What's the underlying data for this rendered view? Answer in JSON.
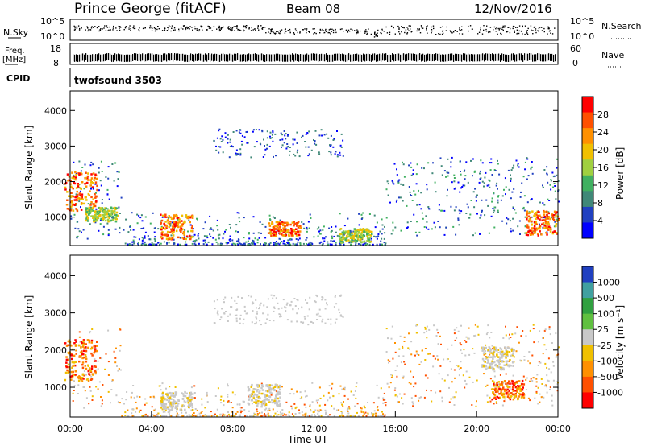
{
  "header": {
    "station": "Prince George (fitACF)",
    "beam": "Beam 08",
    "date": "12/Nov/2016"
  },
  "strips": {
    "nsky_label": "N.Sky",
    "nsky_ticks": [
      "10^5",
      "10^0"
    ],
    "nsky_right_ticks": [
      "10^5",
      "10^0"
    ],
    "nsearch_label": "N.Search",
    "freq_label": "Freq.",
    "freq_unit": "[MHz]",
    "freq_ticks": [
      "18",
      "8"
    ],
    "nave_ticks": [
      "60",
      "0"
    ],
    "nave_label": "Nave",
    "cpid_label": "CPID",
    "cpid_value": "twofsound 3503"
  },
  "chart_data": [
    {
      "type": "heatmap",
      "quantity": "Power",
      "ylabel": "Slant Range [km]",
      "xlabel": "",
      "ylim": [
        200,
        4550
      ],
      "yticks": [
        "1000",
        "2000",
        "3000",
        "4000"
      ],
      "colorbar_label": "Power [dB]",
      "colorbar_ticks": [
        "28",
        "24",
        "20",
        "16",
        "12",
        "8",
        "4"
      ],
      "colorbar_colors": [
        "#ff0000",
        "#ff5000",
        "#ff9000",
        "#f0c000",
        "#a0d040",
        "#40b060",
        "#408878",
        "#2040c0",
        "#0000ff"
      ],
      "data": [
        {
          "t": 0.5,
          "range": [
            1200,
            2300
          ],
          "level": "high"
        },
        {
          "t": 1.5,
          "range": [
            900,
            1300
          ],
          "level": "mid"
        },
        {
          "t": 5.2,
          "range": [
            400,
            1100
          ],
          "level": "high"
        },
        {
          "t": 10.5,
          "range": [
            500,
            900
          ],
          "level": "high"
        },
        {
          "t": 14.0,
          "range": [
            300,
            700
          ],
          "level": "mid"
        },
        {
          "t": 23.2,
          "range": [
            500,
            1200
          ],
          "level": "high"
        }
      ]
    },
    {
      "type": "heatmap",
      "quantity": "Velocity",
      "ylabel": "Slant Range [km]",
      "xlabel": "Time UT",
      "ylim": [
        200,
        4550
      ],
      "yticks": [
        "1000",
        "2000",
        "3000",
        "4000"
      ],
      "xticks": [
        "00:00",
        "04:00",
        "08:00",
        "12:00",
        "16:00",
        "20:00",
        "00:00"
      ],
      "xlim": [
        0,
        24
      ],
      "colorbar_label": "Velocity [m s⁻¹]",
      "colorbar_ticks": [
        "1000",
        "500",
        "100",
        "25",
        "-25",
        "-100",
        "-500",
        "-1000"
      ],
      "colorbar_colors": [
        "#2040c0",
        "#40a0a0",
        "#30a040",
        "#60c040",
        "#c8c8c8",
        "#f0c000",
        "#ff9000",
        "#ff5000",
        "#ff0000"
      ],
      "data": [
        {
          "t": 0.5,
          "range": [
            1200,
            2300
          ],
          "level": "negative"
        },
        {
          "t": 5.2,
          "range": [
            400,
            900
          ],
          "level": "ground"
        },
        {
          "t": 9.5,
          "range": [
            500,
            1100
          ],
          "level": "ground"
        },
        {
          "t": 21.0,
          "range": [
            1500,
            2100
          ],
          "level": "ground"
        },
        {
          "t": 21.5,
          "range": [
            700,
            1200
          ],
          "level": "negative"
        }
      ]
    }
  ]
}
